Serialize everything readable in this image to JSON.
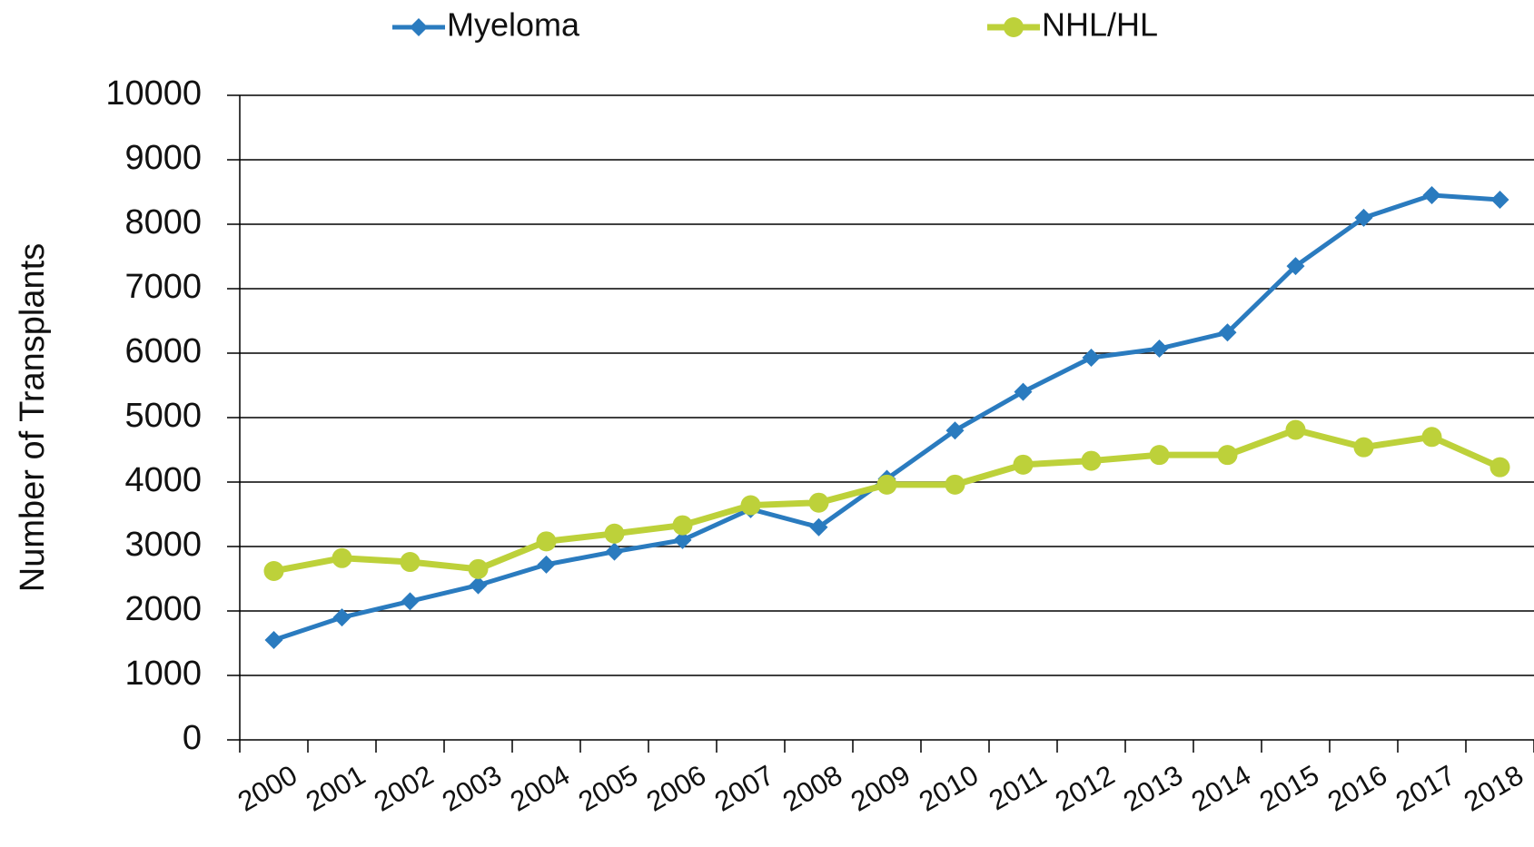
{
  "chart_data": {
    "type": "line",
    "y_label": "Number of Transplants",
    "categories": [
      "2000",
      "2001",
      "2002",
      "2003",
      "2004",
      "2005",
      "2006",
      "2007",
      "2008",
      "2009",
      "2010",
      "2011",
      "2012",
      "2013",
      "2014",
      "2015",
      "2016",
      "2017",
      "2018"
    ],
    "series": [
      {
        "name": "Myeloma",
        "color": "#2a7bbf",
        "marker": "diamond",
        "values": [
          1550,
          1900,
          2150,
          2400,
          2720,
          2920,
          3100,
          3580,
          3300,
          4050,
          4800,
          5400,
          5930,
          6070,
          6320,
          7350,
          8100,
          8450,
          8380
        ]
      },
      {
        "name": "NHL/HL",
        "color": "#bdd13a",
        "marker": "circle",
        "values": [
          2620,
          2820,
          2760,
          2650,
          3080,
          3200,
          3330,
          3640,
          3680,
          3960,
          3960,
          4270,
          4330,
          4420,
          4420,
          4810,
          4540,
          4700,
          4230
        ]
      }
    ],
    "ylim": [
      0,
      10000
    ],
    "yticks": [
      0,
      1000,
      2000,
      3000,
      4000,
      5000,
      6000,
      7000,
      8000,
      9000,
      10000
    ],
    "grid": true
  }
}
